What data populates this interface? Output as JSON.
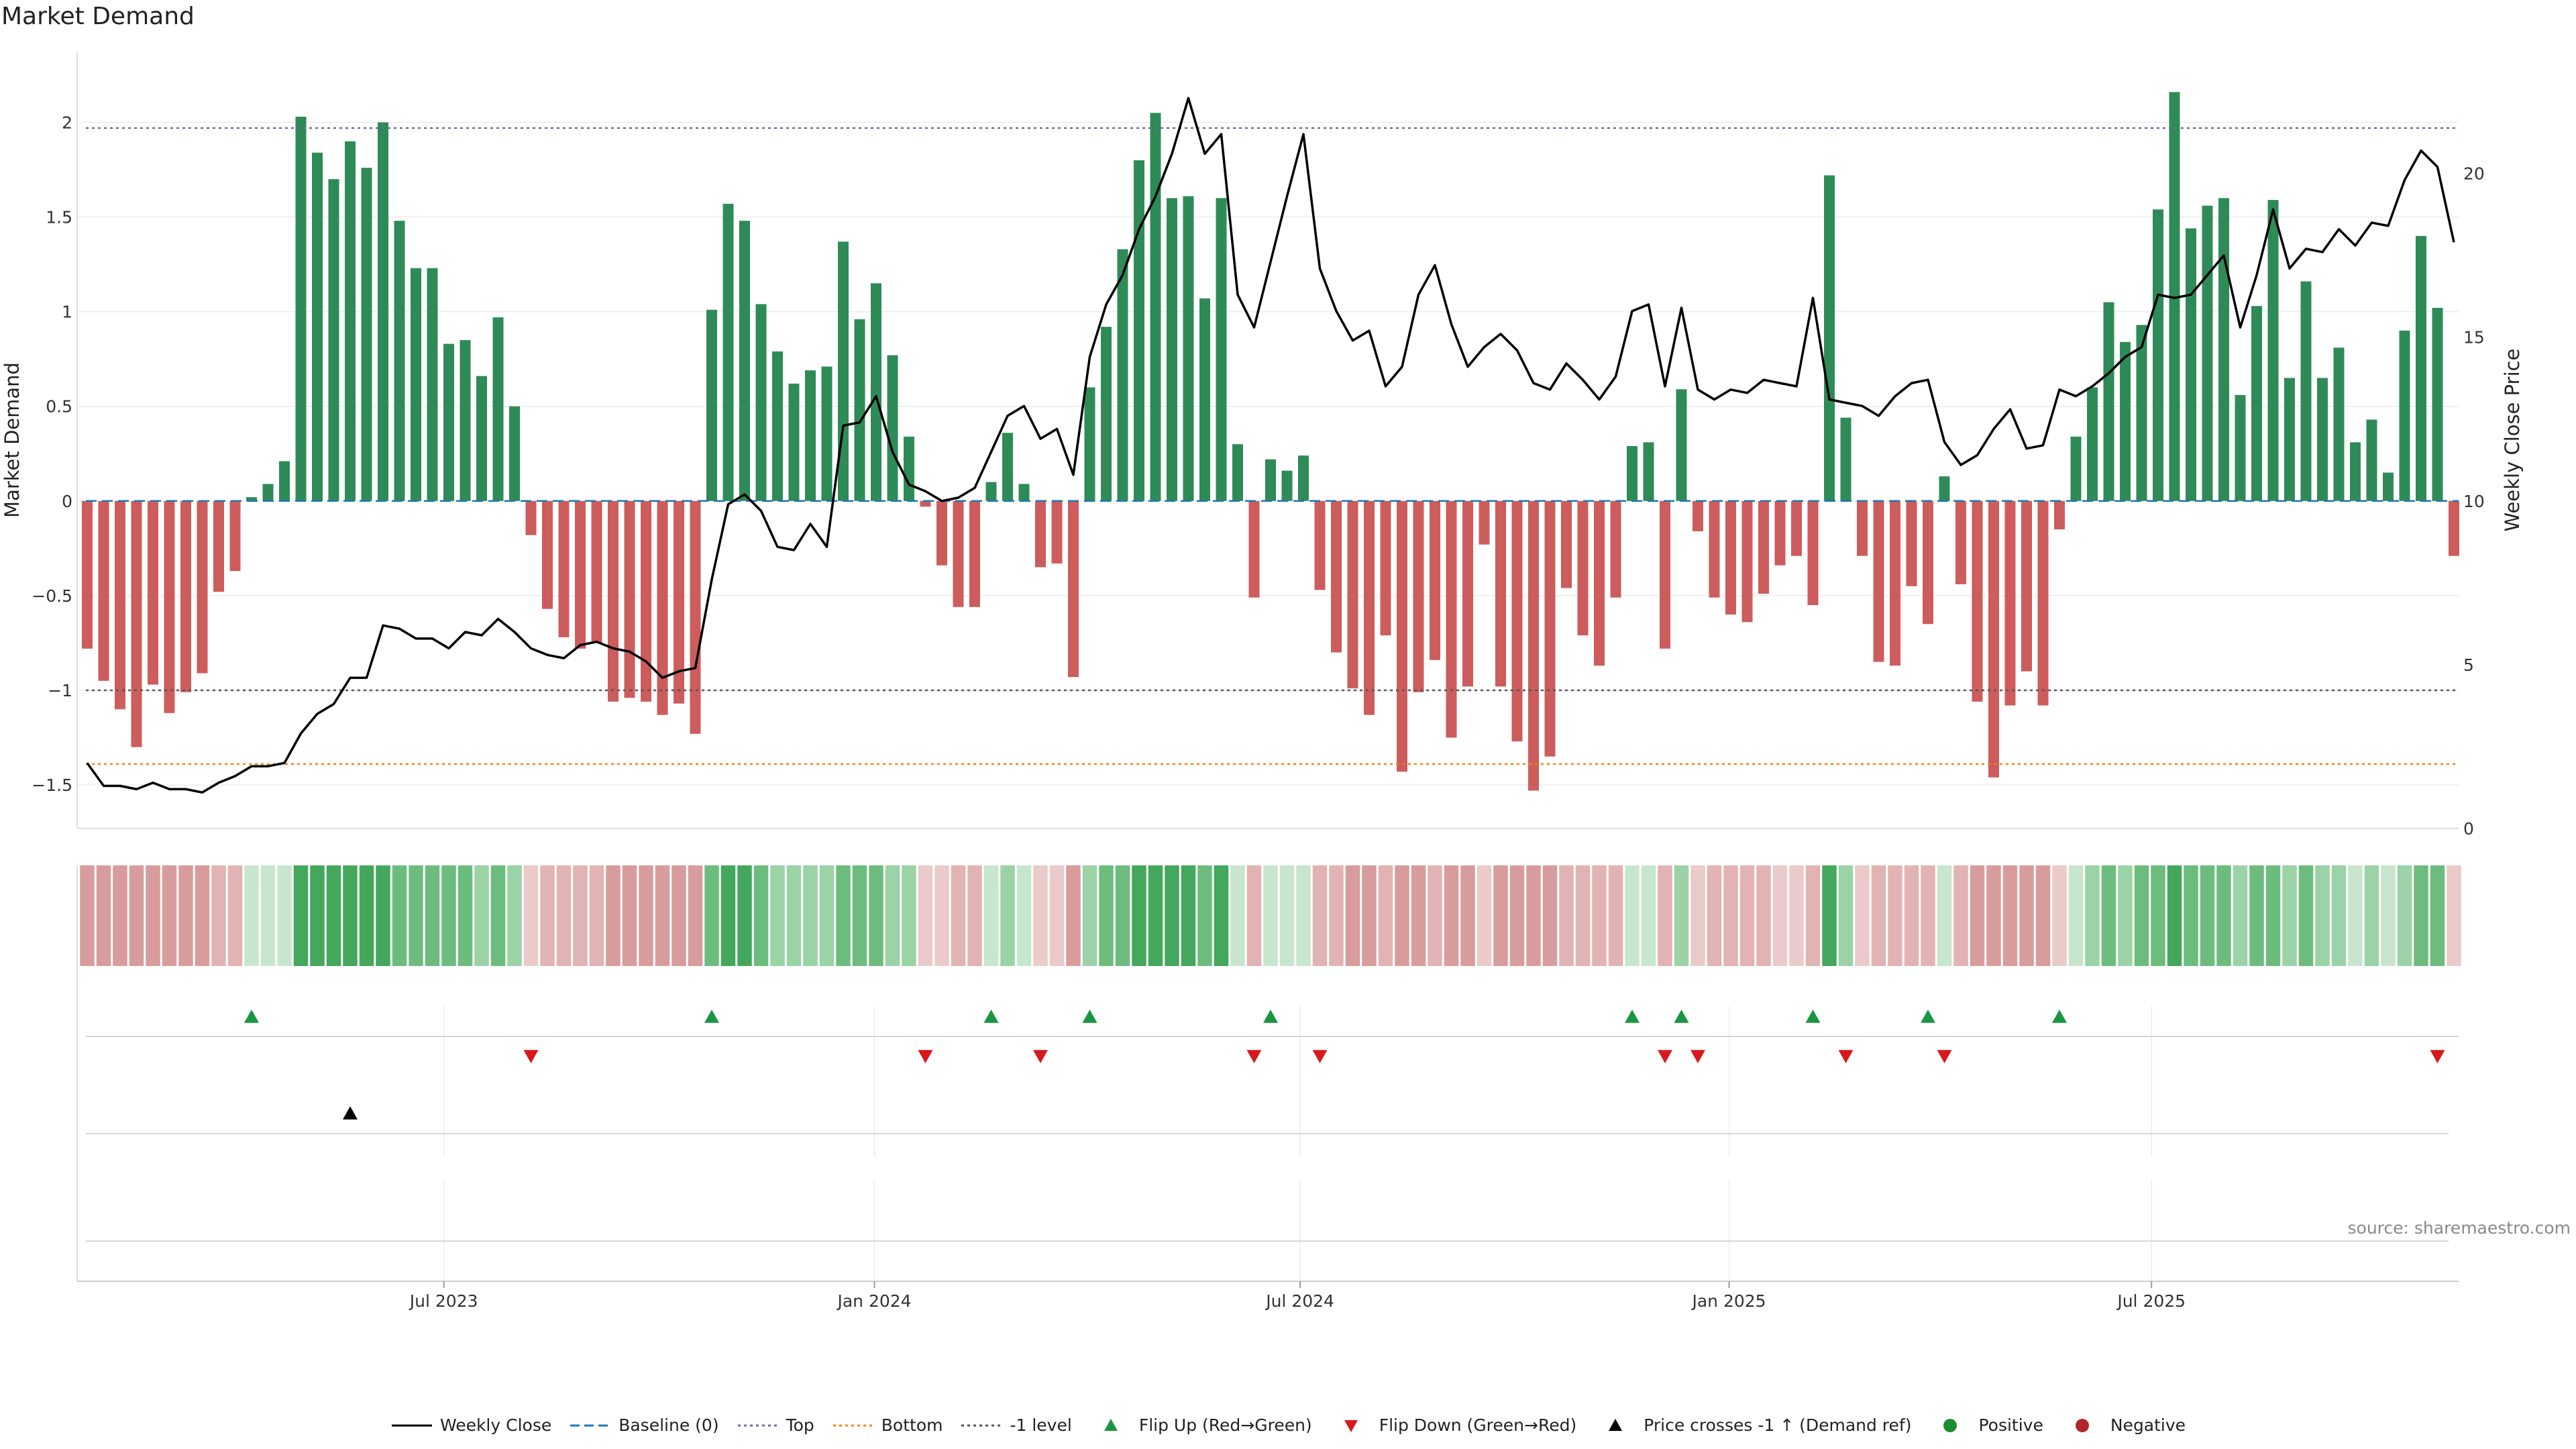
{
  "title": "Market Demand",
  "source": "source: sharemaestro.com",
  "legend": [
    {
      "key": "weekly-close",
      "label": "Weekly Close",
      "color": "#000000",
      "style": "solid-line"
    },
    {
      "key": "baseline",
      "label": "Baseline (0)",
      "color": "#1f77b4",
      "style": "dashed-line"
    },
    {
      "key": "top",
      "label": "Top",
      "color": "#6e6aa8",
      "style": "dotted-line"
    },
    {
      "key": "bottom",
      "label": "Bottom",
      "color": "#ff7f0e",
      "style": "dotted-line"
    },
    {
      "key": "minus-one",
      "label": "-1 level",
      "color": "#555555",
      "style": "dotted-line"
    },
    {
      "key": "flip-up",
      "label": "Flip Up (Red→Green)",
      "color": "#1a9641",
      "style": "triangle-up"
    },
    {
      "key": "flip-down",
      "label": "Flip Down (Green→Red)",
      "color": "#d7191c",
      "style": "triangle-down"
    },
    {
      "key": "price-cross",
      "label": "Price crosses -1 ↑ (Demand ref)",
      "color": "#000000",
      "style": "triangle-up"
    },
    {
      "key": "positive",
      "label": "Positive",
      "color": "#1e8c2e",
      "style": "circle"
    },
    {
      "key": "negative",
      "label": "Negative",
      "color": "#b2272b",
      "style": "circle"
    }
  ],
  "chart_data": {
    "type": "bar",
    "title": "Market Demand",
    "ylabel": "Market Demand",
    "y2label": "Weekly Close Price",
    "ylim": [
      -1.73,
      2.37
    ],
    "y2lim": [
      0,
      23.7
    ],
    "yticks": [
      "2",
      "1.5",
      "1",
      "0.5",
      "0",
      "−0.5",
      "−1",
      "−1.5"
    ],
    "ytick_values": [
      2,
      1.5,
      1,
      0.5,
      0,
      -0.5,
      -1,
      -1.5
    ],
    "y2ticks": [
      "20",
      "15",
      "10",
      "5",
      "0"
    ],
    "y2tick_values": [
      20,
      15,
      10,
      5,
      0
    ],
    "xticks": [
      "Jul 2023",
      "Jan 2024",
      "Jul 2024",
      "Jan 2025",
      "Jul 2025"
    ],
    "xtick_weeks": [
      21.7,
      47.9,
      73.8,
      99.9,
      125.6
    ],
    "reference_lines": {
      "top": 1.97,
      "minus_one": -1.0,
      "bottom": -1.39,
      "baseline": 0
    },
    "weeks": 144,
    "demand": [
      -0.78,
      -0.95,
      -1.1,
      -1.3,
      -0.97,
      -1.12,
      -1.01,
      -0.91,
      -0.48,
      -0.37,
      0.02,
      0.09,
      0.21,
      2.03,
      1.84,
      1.7,
      1.9,
      1.76,
      2.0,
      1.48,
      1.23,
      1.23,
      0.83,
      0.85,
      0.66,
      0.97,
      0.5,
      -0.18,
      -0.57,
      -0.72,
      -0.78,
      -0.75,
      -1.06,
      -1.04,
      -1.06,
      -1.13,
      -1.07,
      -1.23,
      1.01,
      1.57,
      1.48,
      1.04,
      0.79,
      0.62,
      0.69,
      0.71,
      1.37,
      0.96,
      1.15,
      0.77,
      0.34,
      -0.03,
      -0.34,
      -0.56,
      -0.56,
      0.1,
      0.36,
      0.09,
      -0.35,
      -0.33,
      -0.93,
      0.6,
      0.92,
      1.33,
      1.8,
      2.05,
      1.6,
      1.61,
      1.07,
      1.6,
      0.3,
      -0.51,
      0.22,
      0.16,
      0.24,
      -0.47,
      -0.8,
      -0.99,
      -1.13,
      -0.71,
      -1.43,
      -1.01,
      -0.84,
      -1.25,
      -0.98,
      -0.23,
      -0.98,
      -1.27,
      -1.53,
      -1.35,
      -0.46,
      -0.71,
      -0.87,
      -0.51,
      0.29,
      0.31,
      -0.78,
      0.59,
      -0.16,
      -0.51,
      -0.6,
      -0.64,
      -0.49,
      -0.34,
      -0.29,
      -0.55,
      1.72,
      0.44,
      -0.29,
      -0.85,
      -0.87,
      -0.45,
      -0.65,
      0.13,
      -0.44,
      -1.06,
      -1.46,
      -1.08,
      -0.9,
      -1.08,
      -0.15,
      0.34,
      0.6,
      1.05,
      0.84,
      0.93,
      1.54,
      2.16,
      1.44,
      1.56,
      1.6,
      0.56,
      1.03,
      1.59,
      0.65,
      1.16,
      0.65,
      0.81,
      0.31,
      0.43,
      0.15,
      0.9,
      1.4,
      1.02,
      -0.29
    ],
    "weekly_close": [
      2.0,
      1.3,
      1.3,
      1.2,
      1.4,
      1.2,
      1.2,
      1.1,
      1.4,
      1.6,
      1.9,
      1.9,
      2.0,
      2.9,
      3.5,
      3.8,
      4.6,
      4.6,
      6.2,
      6.1,
      5.8,
      5.8,
      5.5,
      6.0,
      5.9,
      6.4,
      6.0,
      5.5,
      5.3,
      5.2,
      5.6,
      5.7,
      5.5,
      5.4,
      5.1,
      4.6,
      4.8,
      4.9,
      7.6,
      9.9,
      10.2,
      9.7,
      8.6,
      8.5,
      9.3,
      8.6,
      12.3,
      12.4,
      13.2,
      11.5,
      10.5,
      10.3,
      10.0,
      10.1,
      10.4,
      11.5,
      12.6,
      12.9,
      11.9,
      12.2,
      10.8,
      14.4,
      16.0,
      16.9,
      18.3,
      19.3,
      20.6,
      22.3,
      20.6,
      21.2,
      16.3,
      15.3,
      17.3,
      19.3,
      21.2,
      17.1,
      15.8,
      14.9,
      15.2,
      13.5,
      14.1,
      16.3,
      17.2,
      15.4,
      14.1,
      14.7,
      15.1,
      14.6,
      13.6,
      13.4,
      14.2,
      13.7,
      13.1,
      13.8,
      15.8,
      16.0,
      13.5,
      15.9,
      13.4,
      13.1,
      13.4,
      13.3,
      13.7,
      13.6,
      13.5,
      16.2,
      13.1,
      13.0,
      12.9,
      12.6,
      13.2,
      13.6,
      13.7,
      11.8,
      11.1,
      11.4,
      12.2,
      12.8,
      11.6,
      11.7,
      13.4,
      13.2,
      13.5,
      13.9,
      14.4,
      14.7,
      16.3,
      16.2,
      16.3,
      16.9,
      17.5,
      15.3,
      16.9,
      18.9,
      17.1,
      17.7,
      17.6,
      18.3,
      17.8,
      18.5,
      18.4,
      19.8,
      20.7,
      20.2,
      17.9
    ],
    "intensity_strip": [
      3,
      3,
      3,
      3,
      3,
      3,
      3,
      3,
      2,
      2,
      1,
      1,
      1,
      4,
      4,
      4,
      4,
      4,
      4,
      3,
      3,
      3,
      3,
      3,
      2,
      3,
      2,
      1,
      2,
      2,
      2,
      2,
      3,
      3,
      3,
      3,
      3,
      3,
      3,
      4,
      4,
      3,
      2,
      2,
      2,
      2,
      3,
      3,
      3,
      2,
      2,
      1,
      1,
      2,
      2,
      1,
      2,
      1,
      1,
      1,
      3,
      2,
      3,
      3,
      4,
      4,
      4,
      4,
      3,
      4,
      1,
      2,
      1,
      1,
      1,
      2,
      2,
      3,
      3,
      2,
      3,
      3,
      2,
      3,
      3,
      1,
      3,
      3,
      3,
      3,
      2,
      2,
      2,
      2,
      1,
      1,
      2,
      2,
      1,
      2,
      2,
      2,
      2,
      1,
      1,
      2,
      4,
      2,
      1,
      2,
      2,
      2,
      2,
      1,
      2,
      3,
      3,
      3,
      3,
      3,
      1,
      1,
      2,
      3,
      2,
      3,
      3,
      4,
      3,
      3,
      3,
      2,
      3,
      3,
      2,
      3,
      2,
      2,
      1,
      2,
      1,
      2,
      3,
      3,
      1
    ],
    "flip_up_weeks": [
      10,
      38,
      55,
      61,
      72,
      94,
      97,
      105,
      112,
      120
    ],
    "flip_down_weeks": [
      27,
      51,
      58,
      71,
      75,
      96,
      98,
      107,
      113,
      143
    ],
    "price_cross_weeks": [
      16
    ]
  }
}
